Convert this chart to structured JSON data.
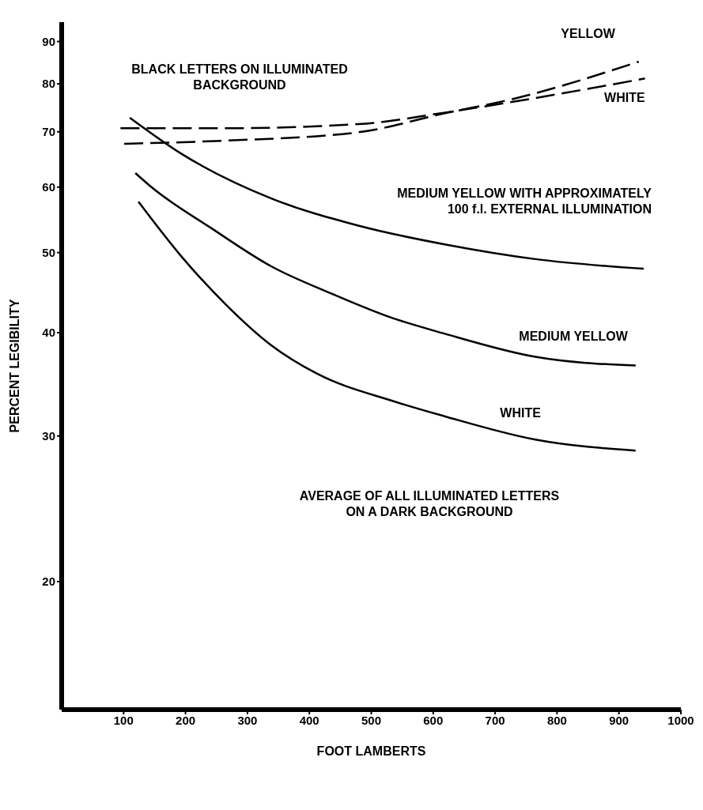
{
  "chart_data": {
    "type": "line",
    "xlabel": "FOOT LAMBERTS",
    "ylabel": "PERCENT LEGIBILITY",
    "xlim": [
      0,
      1000
    ],
    "xticks": [
      100,
      200,
      300,
      400,
      500,
      600,
      700,
      800,
      900,
      1000
    ],
    "ylim": [
      14,
      95
    ],
    "yticks": [
      20,
      30,
      40,
      50,
      60,
      70,
      80,
      90
    ],
    "log": "y",
    "marker": "none",
    "annotations": [
      "BLACK LETTERS ON ILLUMINATED BACKGROUND",
      "AVERAGE OF ALL ILLUMINATED LETTERS ON A DARK BACKGROUND"
    ],
    "series": [
      {
        "name": "YELLOW",
        "color": "#000000",
        "line_style": "dashed",
        "x": [
          101,
          265,
          479,
          622,
          729,
          932
        ],
        "values": [
          67.7,
          68.3,
          69.9,
          73.8,
          76.7,
          85.1
        ]
      },
      {
        "name": "WHITE",
        "color": "#000000",
        "line_style": "dashed",
        "x": [
          95,
          265,
          479,
          622,
          729,
          942
        ],
        "values": [
          70.7,
          70.7,
          71.5,
          73.9,
          76.1,
          81.2
        ]
      },
      {
        "name": "MEDIUM YELLOW WITH APPROXIMATELY 100 f.l. EXTERNAL ILLUMINATION",
        "color": "#000000",
        "line_style": "solid",
        "x": [
          110,
          194,
          337,
          479,
          622,
          765,
          940
        ],
        "values": [
          72.8,
          65.8,
          58.2,
          53.9,
          51.1,
          49.1,
          47.8
        ]
      },
      {
        "name": "MEDIUM YELLOW",
        "color": "#000000",
        "line_style": "solid",
        "x": [
          119,
          145,
          242,
          339,
          436,
          533,
          618,
          765,
          927
        ],
        "values": [
          62.4,
          60.0,
          53.5,
          48.1,
          44.6,
          41.7,
          39.9,
          37.4,
          36.5
        ]
      },
      {
        "name": "WHITE",
        "color": "#000000",
        "line_style": "solid",
        "x": [
          124,
          194,
          266,
          339,
          412,
          533,
          618,
          765,
          927
        ],
        "values": [
          57.6,
          49.4,
          43.2,
          38.6,
          35.7,
          33.1,
          31.7,
          29.7,
          28.8
        ]
      }
    ]
  }
}
